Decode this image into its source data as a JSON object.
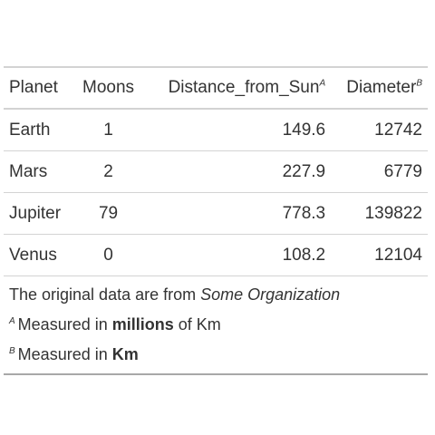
{
  "table": {
    "headers": [
      {
        "label": "Planet",
        "mark": ""
      },
      {
        "label": "Moons",
        "mark": ""
      },
      {
        "label": "Distance_from_Sun",
        "mark": "A"
      },
      {
        "label": "Diameter",
        "mark": "B"
      }
    ],
    "rows": [
      {
        "planet": "Earth",
        "moons": "1",
        "distance": "149.6",
        "diameter": "12742"
      },
      {
        "planet": "Mars",
        "moons": "2",
        "distance": "227.9",
        "diameter": "6779"
      },
      {
        "planet": "Jupiter",
        "moons": "79",
        "distance": "778.3",
        "diameter": "139822"
      },
      {
        "planet": "Venus",
        "moons": "0",
        "distance": "108.2",
        "diameter": "12104"
      }
    ]
  },
  "source_note": {
    "prefix": "The original data are from ",
    "source": "Some Organization"
  },
  "footnotes": [
    {
      "mark": "A",
      "before": "Measured in ",
      "bold": "millions",
      "after": " of Km"
    },
    {
      "mark": "B",
      "before": "Measured in ",
      "bold": "Km",
      "after": ""
    }
  ]
}
